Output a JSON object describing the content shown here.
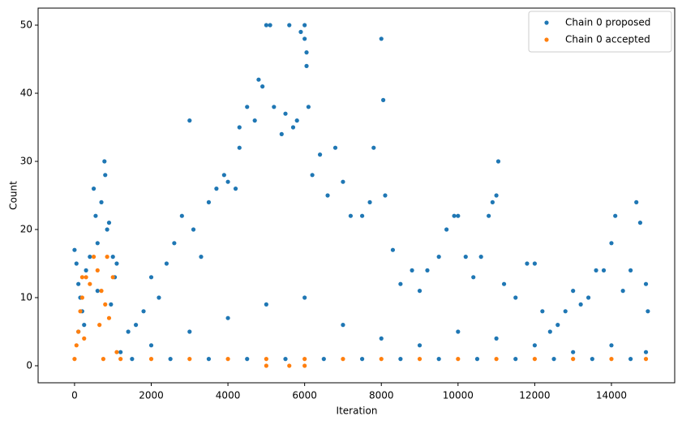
{
  "chart_data": {
    "type": "scatter",
    "x_label": "Iteration",
    "y_label": "Count",
    "xlim": [
      -950,
      15650
    ],
    "ylim": [
      -2.5,
      52.5
    ],
    "xticks": [
      0,
      2000,
      4000,
      6000,
      8000,
      10000,
      12000,
      14000
    ],
    "yticks": [
      0,
      10,
      20,
      30,
      40,
      50
    ],
    "legend": "upper right",
    "series": [
      {
        "name": "Chain 0 proposed",
        "color": "#1f77b4",
        "x": [
          0,
          50,
          100,
          150,
          200,
          300,
          400,
          500,
          550,
          600,
          700,
          780,
          800,
          850,
          900,
          1000,
          1050,
          100,
          250,
          600,
          950,
          1100,
          1200,
          1400,
          1600,
          1800,
          2000,
          2200,
          2400,
          2600,
          2800,
          3000,
          3100,
          3300,
          3500,
          3700,
          3900,
          4000,
          4200,
          4300,
          4300,
          4500,
          4700,
          4800,
          4900,
          5000,
          5100,
          5200,
          5400,
          5500,
          5600,
          5700,
          5800,
          5900,
          6000,
          6000,
          6050,
          6050,
          6100,
          6200,
          6400,
          6600,
          6800,
          7000,
          7200,
          7500,
          7700,
          7800,
          8000,
          8050,
          8100,
          8300,
          8500,
          8800,
          9000,
          9200,
          9500,
          9700,
          9900,
          10000,
          10200,
          10400,
          10600,
          10800,
          10900,
          11000,
          11050,
          11200,
          11500,
          11800,
          12000,
          12200,
          12400,
          12600,
          12800,
          13000,
          13200,
          13400,
          13600,
          13800,
          14000,
          14100,
          14300,
          14500,
          14650,
          14750,
          14900,
          14950,
          2000,
          3000,
          4000,
          5000,
          6000,
          7000,
          8000,
          9000,
          10000,
          11000,
          12000,
          13000,
          14000,
          14900,
          1500,
          2500,
          3500,
          4500,
          5500,
          6500,
          7500,
          8500,
          9500,
          10500,
          11500,
          12500,
          13500,
          14500
        ],
        "y": [
          17,
          15,
          12,
          10,
          8,
          14,
          16,
          26,
          22,
          18,
          24,
          30,
          28,
          20,
          21,
          16,
          13,
          5,
          6,
          11,
          9,
          15,
          2,
          5,
          6,
          8,
          13,
          10,
          15,
          18,
          22,
          36,
          20,
          16,
          24,
          26,
          28,
          27,
          26,
          32,
          35,
          38,
          36,
          42,
          41,
          50,
          50,
          38,
          34,
          37,
          50,
          35,
          36,
          49,
          50,
          48,
          46,
          44,
          38,
          28,
          31,
          25,
          32,
          27,
          22,
          22,
          24,
          32,
          48,
          39,
          25,
          17,
          12,
          14,
          11,
          14,
          16,
          20,
          22,
          22,
          16,
          13,
          16,
          22,
          24,
          25,
          30,
          12,
          10,
          15,
          15,
          8,
          5,
          6,
          8,
          11,
          9,
          10,
          14,
          14,
          18,
          22,
          11,
          14,
          24,
          21,
          12,
          8,
          3,
          5,
          7,
          9,
          10,
          6,
          4,
          3,
          5,
          4,
          3,
          2,
          3,
          2,
          1,
          1,
          1,
          1,
          1,
          1,
          1,
          1,
          1,
          1,
          1,
          1,
          1,
          1
        ]
      },
      {
        "name": "Chain 0 accepted",
        "color": "#ff7f0e",
        "x": [
          0,
          50,
          100,
          150,
          200,
          300,
          400,
          500,
          600,
          700,
          800,
          900,
          1000,
          1100,
          250,
          650,
          750,
          850,
          200,
          1200,
          2000,
          3000,
          4000,
          5000,
          5000,
          5600,
          6000,
          6000,
          7000,
          8000,
          9000,
          10000,
          11000,
          12000,
          13000,
          14000,
          14900
        ],
        "y": [
          1,
          3,
          5,
          8,
          10,
          13,
          12,
          16,
          14,
          11,
          9,
          7,
          13,
          2,
          4,
          6,
          1,
          16,
          13,
          1,
          1,
          1,
          1,
          0,
          1,
          0,
          0,
          1,
          1,
          1,
          1,
          1,
          1,
          1,
          1,
          1,
          1
        ]
      }
    ]
  }
}
